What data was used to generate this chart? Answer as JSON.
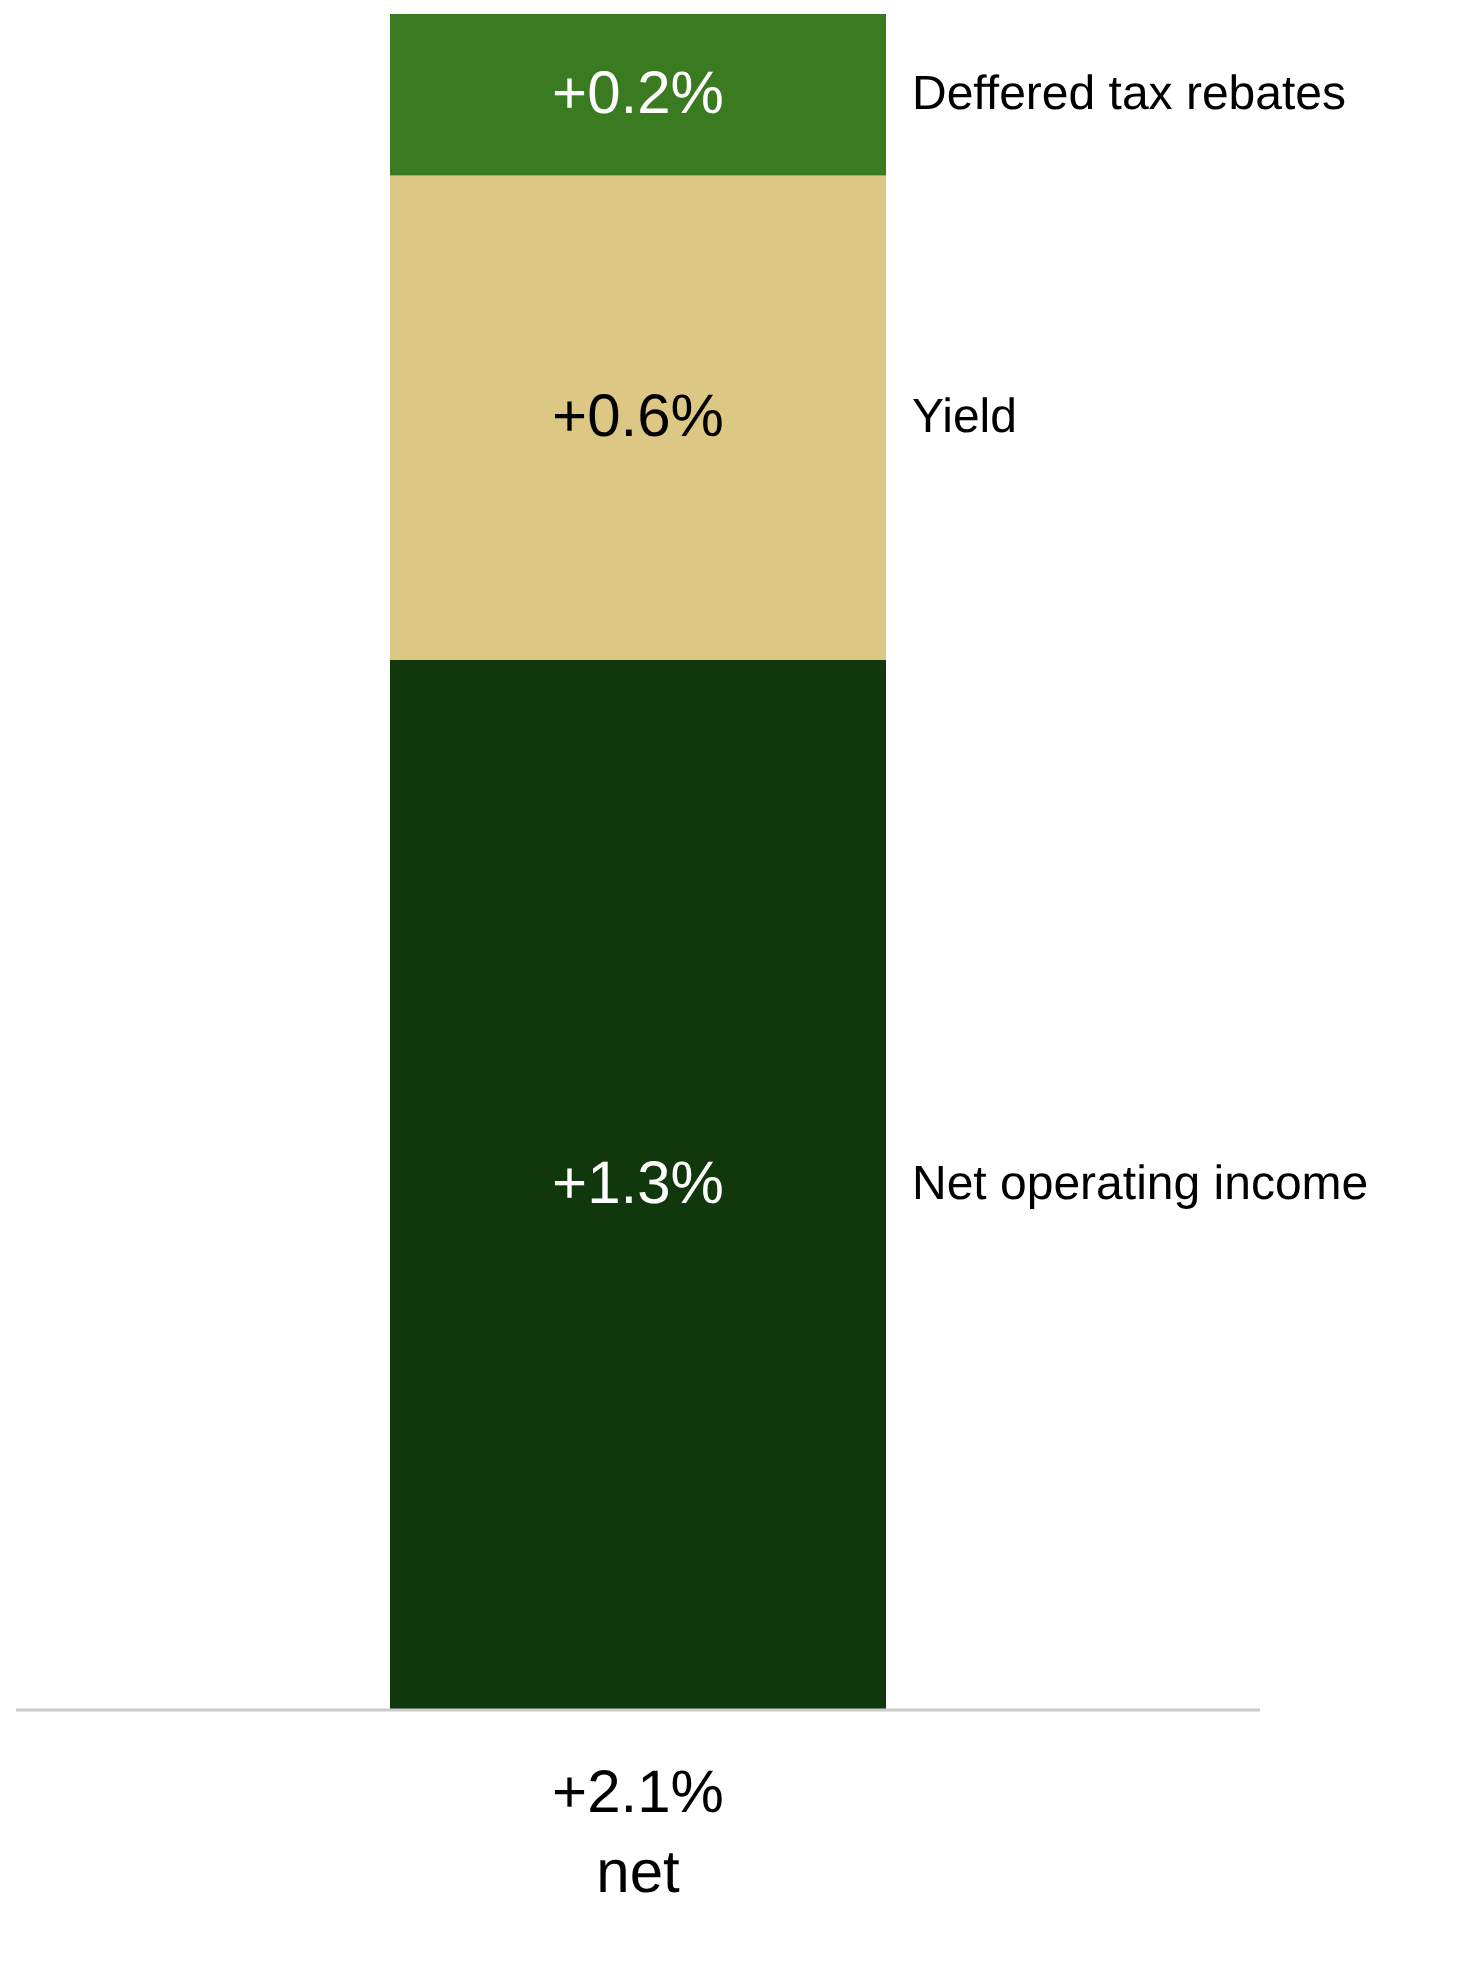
{
  "chart_data": {
    "type": "bar",
    "stacked": true,
    "categories": [
      null
    ],
    "legend": false,
    "series": [
      {
        "name": "Net operating income",
        "color": "#11380c",
        "values": [
          1.3
        ],
        "value_labels": [
          "+1.3%"
        ]
      },
      {
        "name": "Yield",
        "color": "#dcc784",
        "values": [
          0.6
        ],
        "value_labels": [
          "+0.6%"
        ]
      },
      {
        "name": "Deffered tax rebates",
        "color": "#3a7a20",
        "values": [
          0.2
        ],
        "value_labels": [
          "+0.2%"
        ]
      }
    ],
    "totals": [
      "+2.1%"
    ],
    "annotations": [
      "net"
    ]
  }
}
